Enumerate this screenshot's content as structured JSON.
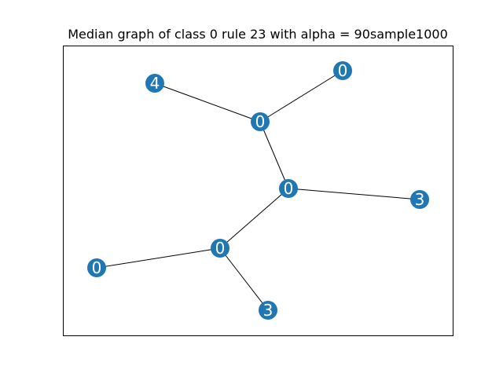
{
  "title": "Median graph of class 0 rule 23 with alpha = 90sample1000",
  "colors": {
    "node_fill": "#1f77b4",
    "node_label": "#ffffff",
    "edge": "#000000",
    "frame": "#000000",
    "background": "#ffffff"
  },
  "graph": {
    "nodes": [
      {
        "id": "n1",
        "label": "4"
      },
      {
        "id": "n2",
        "label": "0"
      },
      {
        "id": "n3",
        "label": "0"
      },
      {
        "id": "n4",
        "label": "0"
      },
      {
        "id": "n5",
        "label": "3"
      },
      {
        "id": "n6",
        "label": "0"
      },
      {
        "id": "n7",
        "label": "0"
      },
      {
        "id": "n8",
        "label": "3"
      }
    ],
    "edges": [
      {
        "source": "n1",
        "target": "n3"
      },
      {
        "source": "n2",
        "target": "n3"
      },
      {
        "source": "n3",
        "target": "n4"
      },
      {
        "source": "n4",
        "target": "n5"
      },
      {
        "source": "n4",
        "target": "n6"
      },
      {
        "source": "n6",
        "target": "n7"
      },
      {
        "source": "n6",
        "target": "n8"
      }
    ]
  }
}
